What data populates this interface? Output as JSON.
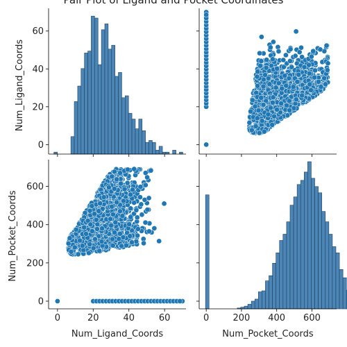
{
  "chart_data": {
    "type": "pairplot",
    "title": "Pair Plot of Ligand and Pocket Coordinates",
    "variables": [
      "Num_Ligand_Coords",
      "Num_Pocket_Coords"
    ],
    "colors": {
      "hist_fill": "#4c86b6",
      "hist_edge": "#1f3f5c",
      "points": "#1f77b4"
    },
    "panels": {
      "ligand_hist": {
        "type": "histogram",
        "x_range": [
          -5,
          72
        ],
        "count_ylim": [
          0,
          75
        ],
        "bin_edges_start": -2,
        "bin_width": 1.9,
        "counts": [
          1,
          0,
          0,
          0,
          0,
          9,
          27,
          35,
          44,
          52,
          53,
          71,
          70,
          46,
          64,
          67,
          54,
          56,
          40,
          42,
          29,
          30,
          21,
          18,
          13,
          18,
          12,
          6,
          7,
          6,
          2,
          4,
          1,
          1,
          0,
          2,
          0,
          1
        ]
      },
      "pocket_hist": {
        "type": "histogram",
        "x_range": [
          -40,
          740
        ],
        "count_ylim": [
          0,
          720
        ],
        "bin_edges_start": -4,
        "bin_width": 20,
        "counts": [
          550,
          0,
          0,
          0,
          0,
          0,
          0,
          0,
          0,
          4,
          8,
          13,
          22,
          37,
          47,
          82,
          87,
          135,
          160,
          220,
          270,
          330,
          360,
          420,
          500,
          540,
          600,
          620,
          660,
          710,
          630,
          590,
          560,
          470,
          420,
          360,
          300,
          270,
          190,
          150,
          90,
          50,
          10,
          5,
          3,
          0
        ]
      },
      "scatter_upper": {
        "type": "scatter",
        "x": "Num_Pocket_Coords",
        "y": "Num_Ligand_Coords",
        "xlim": [
          -40,
          740
        ],
        "ylim": [
          -5,
          72
        ]
      },
      "scatter_lower": {
        "type": "scatter",
        "x": "Num_Ligand_Coords",
        "y": "Num_Pocket_Coords",
        "xlim": [
          -5,
          72
        ],
        "ylim": [
          -40,
          740
        ]
      }
    },
    "ligand_ticks": [
      0,
      20,
      40,
      60
    ],
    "pocket_ticks": [
      0,
      200,
      400,
      600
    ],
    "xlabels": [
      "Num_Ligand_Coords",
      "Num_Pocket_Coords"
    ],
    "ylabels": [
      "Num_Ligand_Coords",
      "Num_Pocket_Coords"
    ]
  }
}
